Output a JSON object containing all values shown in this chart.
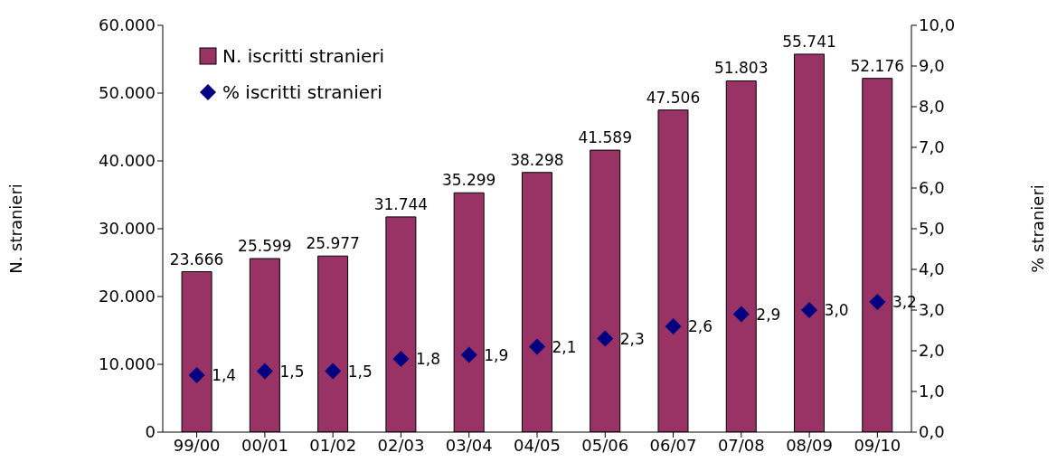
{
  "chart_data": {
    "type": "bar",
    "categories": [
      "99/00",
      "00/01",
      "01/02",
      "02/03",
      "03/04",
      "04/05",
      "05/06",
      "06/07",
      "07/08",
      "08/09",
      "09/10"
    ],
    "ylabel": "N. stranieri",
    "y2label": "% stranieri",
    "ylim": [
      0,
      60000
    ],
    "yticks": [
      0,
      {
        "value": 10000,
        "label": "10.000"
      },
      {
        "value": 20000,
        "label": "20.000"
      },
      {
        "value": 30000,
        "label": "30.000"
      },
      {
        "value": 40000,
        "label": "40.000"
      },
      {
        "value": 50000,
        "label": "50.000"
      },
      {
        "value": 60000,
        "label": "60.000"
      }
    ],
    "y2lim": [
      0,
      10
    ],
    "y2ticks": [
      {
        "value": 0,
        "label": "0,0"
      },
      {
        "value": 1,
        "label": "1,0"
      },
      {
        "value": 2,
        "label": "2,0"
      },
      {
        "value": 3,
        "label": "3,0"
      },
      {
        "value": 4,
        "label": "4,0"
      },
      {
        "value": 5,
        "label": "5,0"
      },
      {
        "value": 6,
        "label": "6,0"
      },
      {
        "value": 7,
        "label": "7,0"
      },
      {
        "value": 8,
        "label": "8,0"
      },
      {
        "value": 9,
        "label": "9,0"
      },
      {
        "value": 10,
        "label": "10,0"
      }
    ],
    "series": [
      {
        "name": "N. iscritti stranieri",
        "color": "#993366",
        "values": [
          23666,
          25599,
          25977,
          31744,
          35299,
          38298,
          41589,
          47506,
          51803,
          55741,
          52176
        ],
        "value_labels": [
          "23.666",
          "25.599",
          "25.977",
          "31.744",
          "35.299",
          "38.298",
          "41.589",
          "47.506",
          "51.803",
          "55.741",
          "52.176"
        ]
      },
      {
        "name": "% iscritti stranieri",
        "type": "scatter",
        "axis": "y2",
        "marker": "diamond",
        "color": "#000080",
        "values": [
          1.4,
          1.5,
          1.5,
          1.8,
          1.9,
          2.1,
          2.3,
          2.6,
          2.9,
          3.0,
          3.2
        ],
        "value_labels": [
          "1,4",
          "1,5",
          "1,5",
          "1,8",
          "1,9",
          "2,1",
          "2,3",
          "2,6",
          "2,9",
          "3,0",
          "3,2"
        ]
      }
    ],
    "legend": "top left",
    "grid": false
  }
}
